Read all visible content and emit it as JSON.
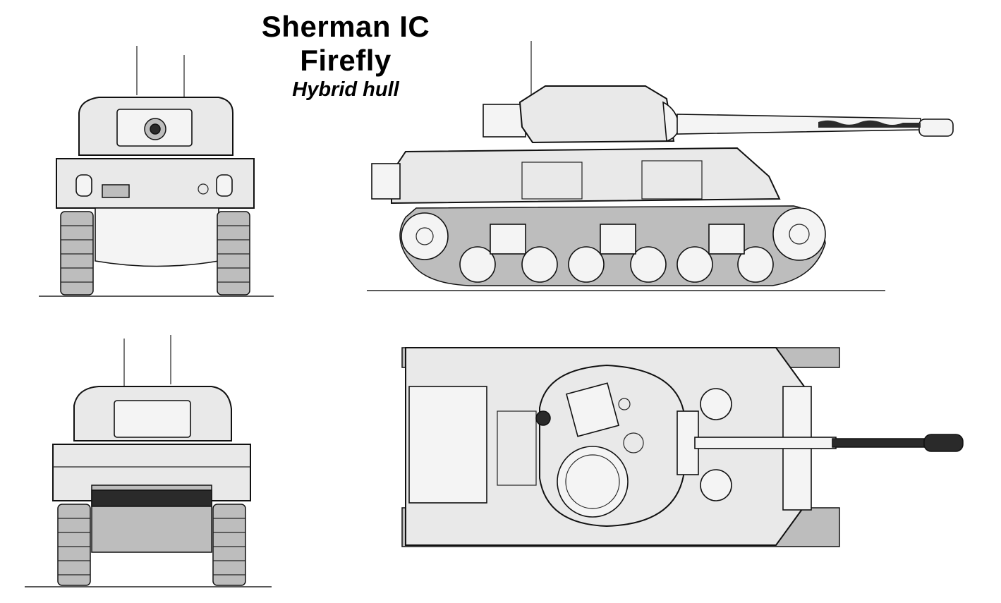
{
  "title": {
    "line1": "Sherman IC",
    "line2": "Firefly",
    "subtitle": "Hybrid hull"
  },
  "colors": {
    "ink": "#111111",
    "hull_shade": "#e9e9e9",
    "dark_shadow": "#2a2a2a",
    "background": "#ffffff"
  }
}
